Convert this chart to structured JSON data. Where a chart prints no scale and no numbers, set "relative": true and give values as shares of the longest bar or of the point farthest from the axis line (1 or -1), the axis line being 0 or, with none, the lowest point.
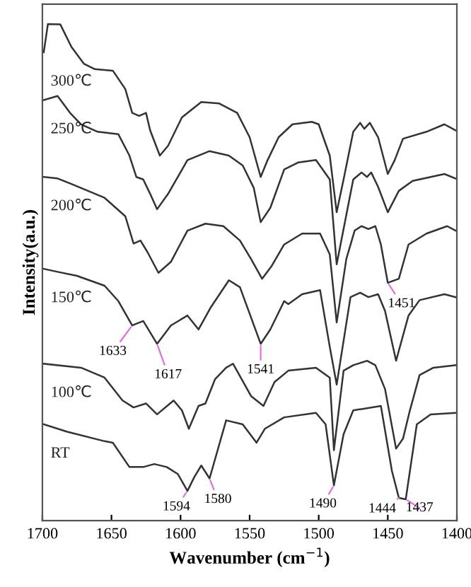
{
  "chart_data": {
    "type": "line",
    "relative": true,
    "xlabel": "Wavenumber (cm$^{−1}$)",
    "ylabel": "Intensity(a.u.)",
    "xlim": [
      1700,
      1400
    ],
    "xticks": [
      1700,
      1650,
      1600,
      1550,
      1500,
      1450,
      1400
    ],
    "grid": false,
    "legend": false,
    "marker": "none",
    "line_style": "solid",
    "series": [
      {
        "name": "300℃",
        "color": "#333333",
        "x": [
          1699,
          1696,
          1687,
          1679,
          1670,
          1662,
          1649,
          1640,
          1635,
          1630,
          1625,
          1622,
          1615,
          1609,
          1599,
          1585,
          1572,
          1559,
          1550,
          1542,
          1537,
          1529,
          1519,
          1505,
          1500,
          1492,
          1487,
          1482,
          1475,
          1470,
          1467,
          1463,
          1457,
          1450,
          1445,
          1439,
          1422,
          1409,
          1401
        ],
        "values": [
          0.943,
          1.0,
          0.999,
          0.954,
          0.92,
          0.909,
          0.906,
          0.869,
          0.821,
          0.815,
          0.821,
          0.786,
          0.735,
          0.755,
          0.812,
          0.843,
          0.84,
          0.821,
          0.772,
          0.692,
          0.726,
          0.772,
          0.798,
          0.803,
          0.798,
          0.735,
          0.621,
          0.687,
          0.783,
          0.801,
          0.789,
          0.801,
          0.772,
          0.698,
          0.726,
          0.769,
          0.783,
          0.798,
          0.786
        ]
      },
      {
        "name": "250℃",
        "color": "#333333",
        "x": [
          1699,
          1689,
          1680,
          1672,
          1660,
          1645,
          1637,
          1632,
          1627,
          1622,
          1617,
          1609,
          1595,
          1579,
          1565,
          1555,
          1547,
          1542,
          1535,
          1525,
          1515,
          1502,
          1492,
          1487,
          1475,
          1469,
          1465,
          1462,
          1457,
          1450,
          1442,
          1432,
          1409,
          1401
        ],
        "values": [
          0.847,
          0.855,
          0.821,
          0.798,
          0.783,
          0.778,
          0.735,
          0.692,
          0.687,
          0.658,
          0.627,
          0.658,
          0.726,
          0.744,
          0.735,
          0.715,
          0.67,
          0.601,
          0.63,
          0.707,
          0.721,
          0.726,
          0.687,
          0.516,
          0.687,
          0.701,
          0.692,
          0.701,
          0.672,
          0.621,
          0.664,
          0.684,
          0.698,
          0.689
        ]
      },
      {
        "name": "200℃",
        "color": "#333333",
        "x": [
          1699,
          1689,
          1679,
          1655,
          1640,
          1634,
          1629,
          1624,
          1616,
          1607,
          1595,
          1582,
          1569,
          1557,
          1549,
          1541,
          1534,
          1525,
          1512,
          1499,
          1492,
          1487,
          1480,
          1474,
          1469,
          1464,
          1459,
          1455,
          1450,
          1442,
          1435,
          1422,
          1407,
          1401
        ],
        "values": [
          0.692,
          0.689,
          0.678,
          0.65,
          0.613,
          0.558,
          0.564,
          0.541,
          0.499,
          0.521,
          0.584,
          0.598,
          0.593,
          0.564,
          0.527,
          0.487,
          0.513,
          0.556,
          0.578,
          0.578,
          0.536,
          0.399,
          0.527,
          0.584,
          0.593,
          0.587,
          0.593,
          0.556,
          0.479,
          0.487,
          0.556,
          0.578,
          0.593,
          0.584
        ]
      },
      {
        "name": "150℃",
        "color": "#333333",
        "x": [
          1699,
          1689,
          1675,
          1655,
          1645,
          1635,
          1627,
          1617,
          1607,
          1595,
          1587,
          1578,
          1565,
          1557,
          1542,
          1535,
          1525,
          1522,
          1512,
          1499,
          1492,
          1487,
          1477,
          1470,
          1464,
          1457,
          1452,
          1444,
          1435,
          1427,
          1409,
          1401
        ],
        "values": [
          0.507,
          0.501,
          0.493,
          0.473,
          0.442,
          0.393,
          0.402,
          0.356,
          0.393,
          0.413,
          0.385,
          0.43,
          0.484,
          0.47,
          0.356,
          0.385,
          0.442,
          0.436,
          0.456,
          0.464,
          0.35,
          0.274,
          0.45,
          0.459,
          0.45,
          0.456,
          0.422,
          0.322,
          0.413,
          0.444,
          0.456,
          0.45
        ]
      },
      {
        "name": "100℃",
        "color": "#333333",
        "x": [
          1699,
          1672,
          1655,
          1642,
          1634,
          1625,
          1617,
          1605,
          1599,
          1594,
          1587,
          1582,
          1575,
          1567,
          1562,
          1549,
          1540,
          1532,
          1522,
          1502,
          1492,
          1489,
          1482,
          1475,
          1465,
          1459,
          1452,
          1444,
          1439,
          1434,
          1427,
          1417,
          1401
        ],
        "values": [
          0.316,
          0.308,
          0.288,
          0.242,
          0.228,
          0.236,
          0.214,
          0.242,
          0.222,
          0.185,
          0.231,
          0.236,
          0.285,
          0.308,
          0.316,
          0.251,
          0.231,
          0.279,
          0.302,
          0.308,
          0.288,
          0.142,
          0.302,
          0.313,
          0.322,
          0.313,
          0.265,
          0.145,
          0.165,
          0.222,
          0.293,
          0.308,
          0.313
        ]
      },
      {
        "name": "RT",
        "color": "#333333",
        "x": [
          1699,
          1682,
          1655,
          1649,
          1637,
          1627,
          1619,
          1610,
          1602,
          1595,
          1590,
          1585,
          1579,
          1567,
          1555,
          1545,
          1539,
          1525,
          1502,
          1495,
          1489,
          1482,
          1475,
          1455,
          1447,
          1442,
          1437,
          1429,
          1419,
          1401
        ],
        "values": [
          0.194,
          0.179,
          0.16,
          0.157,
          0.108,
          0.108,
          0.114,
          0.108,
          0.094,
          0.06,
          0.088,
          0.111,
          0.085,
          0.202,
          0.194,
          0.157,
          0.185,
          0.208,
          0.217,
          0.194,
          0.071,
          0.174,
          0.222,
          0.231,
          0.1,
          0.046,
          0.043,
          0.194,
          0.214,
          0.217
        ]
      }
    ],
    "annotations": [
      {
        "text": "1633",
        "x": 1635,
        "y": 0.393
      },
      {
        "text": "1617",
        "x": 1617,
        "y": 0.356
      },
      {
        "text": "1541",
        "x": 1542,
        "y": 0.356
      },
      {
        "text": "1451",
        "x": 1450,
        "y": 0.479
      },
      {
        "text": "1594",
        "x": 1595,
        "y": 0.06
      },
      {
        "text": "1580",
        "x": 1579,
        "y": 0.085
      },
      {
        "text": "1490",
        "x": 1489,
        "y": 0.071
      },
      {
        "text": "1444",
        "x": 1442,
        "y": 0.046
      },
      {
        "text": "1437",
        "x": 1437,
        "y": 0.043
      }
    ]
  }
}
